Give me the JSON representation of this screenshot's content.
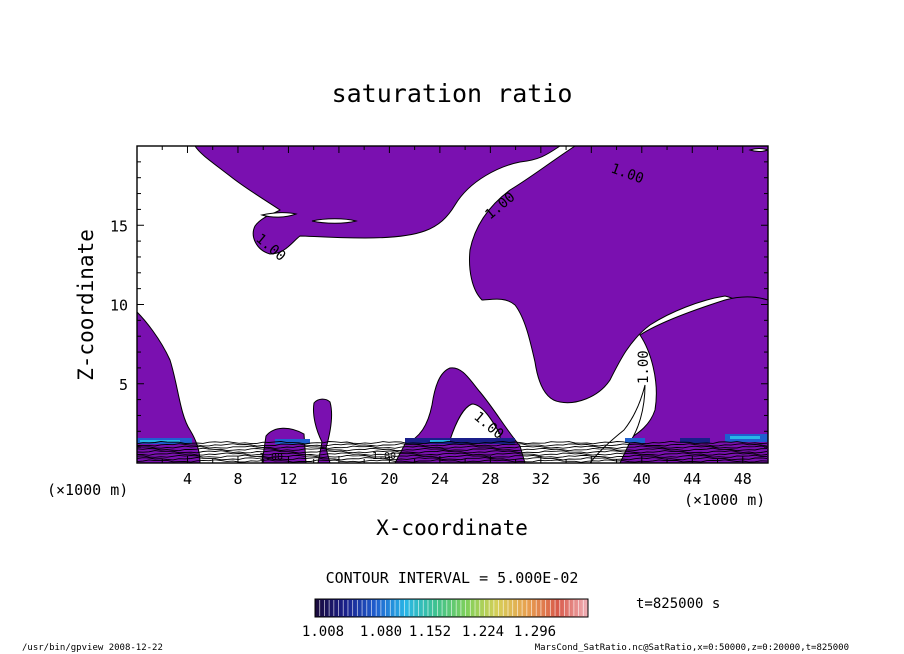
{
  "chart_data": {
    "type": "contour",
    "title": "saturation ratio",
    "xlabel": "X-coordinate",
    "ylabel": "Z-coordinate",
    "x_unit": "(×1000 m)",
    "y_unit": "(×1000 m)",
    "xlim": [
      0,
      50
    ],
    "ylim": [
      0,
      20
    ],
    "xticks": [
      4,
      8,
      12,
      16,
      20,
      24,
      28,
      32,
      36,
      40,
      44,
      48
    ],
    "yticks": [
      5,
      10,
      15
    ],
    "contour_interval_text": "CONTOUR INTERVAL = 5.000E-02",
    "time_text": "t=825000 s",
    "contour_labels": [
      "1.00",
      "1.00",
      "1.00",
      "1.00",
      "1.00",
      "1.00",
      "1.00"
    ],
    "colorbar": {
      "tick_labels": [
        "1.008",
        "1.080",
        "1.152",
        "1.224",
        "1.296"
      ],
      "colors": [
        "#1a0a3a",
        "#1a1f8a",
        "#1f5fcf",
        "#29b7e6",
        "#3ec28e",
        "#7fd05a",
        "#d6cf58",
        "#e8a050",
        "#d85a4a",
        "#f0b0b8"
      ]
    },
    "fill_color": "#7a10b0",
    "grid": false
  },
  "footer": {
    "left": "/usr/bin/gpview   2008-12-22",
    "right": "MarsCond_SatRatio.nc@SatRatio,x=0:50000,z=0:20000,t=825000"
  }
}
